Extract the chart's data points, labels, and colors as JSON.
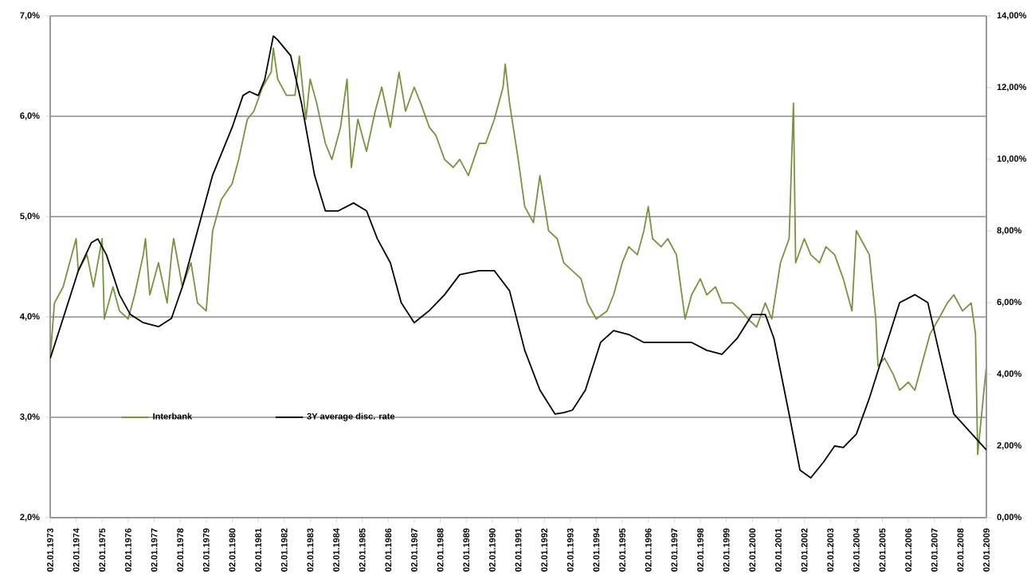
{
  "chart_data": {
    "type": "line",
    "xlim": [
      "1973-01-02",
      "2009-01-02"
    ],
    "xticks": [
      {
        "value": "1973-01-02",
        "label": "02.01.1973"
      },
      {
        "value": "1974-01-02",
        "label": "02.01.1974"
      },
      {
        "value": "1975-01-02",
        "label": "02.01.1975"
      },
      {
        "value": "1976-01-02",
        "label": "02.01.1976"
      },
      {
        "value": "1977-01-02",
        "label": "02.01.1977"
      },
      {
        "value": "1978-01-02",
        "label": "02.01.1978"
      },
      {
        "value": "1979-01-02",
        "label": "02.01.1979"
      },
      {
        "value": "1980-01-02",
        "label": "02.01.1980"
      },
      {
        "value": "1981-01-02",
        "label": "02.01.1981"
      },
      {
        "value": "1982-01-02",
        "label": "02.01.1982"
      },
      {
        "value": "1983-01-02",
        "label": "02.01.1983"
      },
      {
        "value": "1984-01-02",
        "label": "02.01.1984"
      },
      {
        "value": "1985-01-02",
        "label": "02.01.1985"
      },
      {
        "value": "1986-01-02",
        "label": "02.01.1986"
      },
      {
        "value": "1987-01-02",
        "label": "02.01.1987"
      },
      {
        "value": "1988-01-02",
        "label": "02.01.1988"
      },
      {
        "value": "1989-01-02",
        "label": "02.01.1989"
      },
      {
        "value": "1990-01-02",
        "label": "02.01.1990"
      },
      {
        "value": "1991-01-02",
        "label": "02.01.1991"
      },
      {
        "value": "1992-01-02",
        "label": "02.01.1992"
      },
      {
        "value": "1993-01-02",
        "label": "02.01.1993"
      },
      {
        "value": "1994-01-02",
        "label": "02.01.1994"
      },
      {
        "value": "1995-01-02",
        "label": "02.01.1995"
      },
      {
        "value": "1996-01-02",
        "label": "02.01.1996"
      },
      {
        "value": "1997-01-02",
        "label": "02.01.1997"
      },
      {
        "value": "1998-01-02",
        "label": "02.01.1998"
      },
      {
        "value": "1999-01-02",
        "label": "02.01.1999"
      },
      {
        "value": "2000-01-02",
        "label": "02.01.2000"
      },
      {
        "value": "2001-01-02",
        "label": "02.01.2001"
      },
      {
        "value": "2002-01-02",
        "label": "02.01.2002"
      },
      {
        "value": "2003-01-02",
        "label": "02.01.2003"
      },
      {
        "value": "2004-01-02",
        "label": "02.01.2004"
      },
      {
        "value": "2005-01-02",
        "label": "02.01.2005"
      },
      {
        "value": "2006-01-02",
        "label": "02.01.2006"
      },
      {
        "value": "2007-01-02",
        "label": "02.01.2007"
      },
      {
        "value": "2008-01-02",
        "label": "02.01.2008"
      },
      {
        "value": "2009-01-02",
        "label": "02.01.2009"
      }
    ],
    "ylim": [
      2,
      7
    ],
    "yticks": [
      {
        "value": 2,
        "label": "2,0%"
      },
      {
        "value": 3,
        "label": "3,0%"
      },
      {
        "value": 4,
        "label": "4,0%"
      },
      {
        "value": 5,
        "label": "5,0%"
      },
      {
        "value": 6,
        "label": "6,0%"
      },
      {
        "value": 7,
        "label": "7,0%"
      }
    ],
    "y2lim": [
      0,
      14
    ],
    "y2ticks": [
      {
        "value": 0,
        "label": "0,00%"
      },
      {
        "value": 2,
        "label": "2,00%"
      },
      {
        "value": 4,
        "label": "4,00%"
      },
      {
        "value": 6,
        "label": "6,00%"
      },
      {
        "value": 8,
        "label": "8,00%"
      },
      {
        "value": 10,
        "label": "10,00%"
      },
      {
        "value": 12,
        "label": "12,00%"
      },
      {
        "value": 14,
        "label": "14,00%"
      }
    ],
    "grid": "y",
    "legend": "bottom left",
    "series": [
      {
        "name": "Interbank",
        "color": "#77933c",
        "x": [
          "1973-01-02",
          "1973-03",
          "1973-07",
          "1973-10",
          "1974-01",
          "1974-02",
          "1974-06",
          "1974-09",
          "1975-01",
          "1975-02",
          "1975-06",
          "1975-09",
          "1976-01",
          "1976-04",
          "1976-08",
          "1976-09",
          "1976-11",
          "1977-03",
          "1977-07",
          "1977-09",
          "1977-10",
          "1978-02",
          "1978-06",
          "1978-09",
          "1979-01",
          "1979-04",
          "1979-08",
          "1980-01",
          "1980-04",
          "1980-08",
          "1980-11",
          "1981-03",
          "1981-07",
          "1981-08",
          "1981-10",
          "1982-02",
          "1982-06",
          "1982-08",
          "1982-11",
          "1983-01",
          "1983-04",
          "1983-08",
          "1983-11",
          "1984-03",
          "1984-06",
          "1984-08",
          "1984-11",
          "1985-03",
          "1985-07",
          "1985-10",
          "1986-02",
          "1986-06",
          "1986-09",
          "1987-01",
          "1987-04",
          "1987-08",
          "1987-11",
          "1988-03",
          "1988-07",
          "1988-10",
          "1989-02",
          "1989-07",
          "1989-10",
          "1990-02",
          "1990-06",
          "1990-07",
          "1990-09",
          "1991-01",
          "1991-04",
          "1991-08",
          "1991-11",
          "1992-03",
          "1992-07",
          "1992-10",
          "1993-02",
          "1993-06",
          "1993-09",
          "1994-01",
          "1994-06",
          "1994-09",
          "1995-01",
          "1995-04",
          "1995-08",
          "1995-11",
          "1996-01",
          "1996-03",
          "1996-07",
          "1996-10",
          "1997-02",
          "1997-06",
          "1997-09",
          "1998-01",
          "1998-04",
          "1998-08",
          "1998-11",
          "1999-04",
          "1999-08",
          "1999-11",
          "2000-03",
          "2000-07",
          "2000-10",
          "2001-02",
          "2001-06",
          "2001-08",
          "2001-09",
          "2002-01",
          "2002-04",
          "2002-08",
          "2002-11",
          "2003-03",
          "2003-07",
          "2003-11",
          "2004-01",
          "2004-03",
          "2004-07",
          "2004-10",
          "2004-11",
          "2005-02",
          "2005-06",
          "2005-09",
          "2006-01",
          "2006-04",
          "2006-08",
          "2006-11",
          "2007-03",
          "2007-07",
          "2007-10",
          "2008-02",
          "2008-06",
          "2008-08",
          "2008-09",
          "2009-01"
        ],
        "values": [
          3.59,
          4.14,
          4.3,
          4.54,
          4.78,
          4.46,
          4.62,
          4.3,
          4.78,
          3.98,
          4.3,
          4.06,
          3.98,
          4.22,
          4.62,
          4.78,
          4.22,
          4.54,
          4.14,
          4.62,
          4.78,
          4.3,
          4.54,
          4.14,
          4.06,
          4.86,
          5.17,
          5.33,
          5.57,
          5.97,
          6.05,
          6.29,
          6.44,
          6.68,
          6.37,
          6.21,
          6.21,
          6.6,
          5.97,
          6.37,
          6.13,
          5.73,
          5.57,
          5.89,
          6.37,
          5.49,
          5.97,
          5.65,
          6.05,
          6.29,
          5.89,
          6.44,
          6.05,
          6.29,
          6.13,
          5.89,
          5.81,
          5.57,
          5.49,
          5.57,
          5.41,
          5.73,
          5.73,
          5.97,
          6.29,
          6.52,
          6.13,
          5.57,
          5.1,
          4.94,
          5.41,
          4.86,
          4.78,
          4.54,
          4.46,
          4.38,
          4.14,
          3.98,
          4.06,
          4.22,
          4.54,
          4.7,
          4.62,
          4.86,
          5.1,
          4.78,
          4.7,
          4.78,
          4.62,
          3.98,
          4.22,
          4.38,
          4.22,
          4.3,
          4.14,
          4.14,
          4.06,
          3.98,
          3.9,
          4.14,
          3.98,
          4.54,
          4.78,
          6.13,
          4.54,
          4.78,
          4.62,
          4.54,
          4.7,
          4.62,
          4.38,
          4.06,
          4.86,
          4.78,
          4.62,
          3.98,
          3.51,
          3.59,
          3.43,
          3.27,
          3.35,
          3.27,
          3.59,
          3.83,
          3.98,
          4.14,
          4.22,
          4.06,
          4.14,
          3.83,
          2.63,
          3.51
        ]
      },
      {
        "name": "3Y average disc. rate",
        "color": "#000000",
        "axis": "y2",
        "x": [
          "1973-01-02",
          "1973-07",
          "1974-02",
          "1974-08",
          "1974-11",
          "1975-03",
          "1975-09",
          "1976-02",
          "1976-08",
          "1977-03",
          "1977-09",
          "1978-02",
          "1978-09",
          "1979-04",
          "1980-01",
          "1980-06",
          "1980-09",
          "1981-01",
          "1981-04",
          "1981-08",
          "1981-10",
          "1982-04",
          "1982-09",
          "1983-03",
          "1983-08",
          "1984-02",
          "1984-09",
          "1985-03",
          "1985-08",
          "1986-02",
          "1986-07",
          "1987-01",
          "1987-08",
          "1988-03",
          "1988-10",
          "1989-07",
          "1990-02",
          "1990-09",
          "1991-04",
          "1991-11",
          "1992-06",
          "1992-10",
          "1993-02",
          "1993-08",
          "1994-03",
          "1994-09",
          "1995-04",
          "1995-11",
          "1996-07",
          "1997-02",
          "1997-09",
          "1998-04",
          "1998-11",
          "1999-06",
          "2000-01",
          "2000-07",
          "2000-11",
          "2001-06",
          "2001-11",
          "2002-04",
          "2002-10",
          "2003-03",
          "2003-07",
          "2004-01",
          "2004-07",
          "2005-02",
          "2005-09",
          "2006-04",
          "2006-10",
          "2007-03",
          "2007-10",
          "2009-01"
        ],
        "values": [
          4.44,
          5.56,
          6.89,
          7.67,
          7.78,
          7.33,
          6.22,
          5.67,
          5.44,
          5.33,
          5.56,
          6.44,
          8.0,
          9.56,
          10.89,
          11.78,
          11.89,
          11.78,
          12.22,
          13.44,
          13.33,
          12.89,
          11.56,
          9.56,
          8.56,
          8.56,
          8.78,
          8.56,
          7.78,
          7.11,
          6.0,
          5.44,
          5.78,
          6.22,
          6.78,
          6.89,
          6.89,
          6.33,
          4.67,
          3.56,
          2.89,
          2.93,
          3.0,
          3.56,
          4.89,
          5.22,
          5.11,
          4.89,
          4.89,
          4.89,
          4.89,
          4.67,
          4.56,
          5.0,
          5.67,
          5.67,
          5.0,
          2.89,
          1.33,
          1.11,
          1.56,
          2.0,
          1.96,
          2.33,
          3.33,
          4.67,
          6.0,
          6.22,
          6.0,
          4.67,
          2.89,
          1.89
        ]
      }
    ]
  }
}
